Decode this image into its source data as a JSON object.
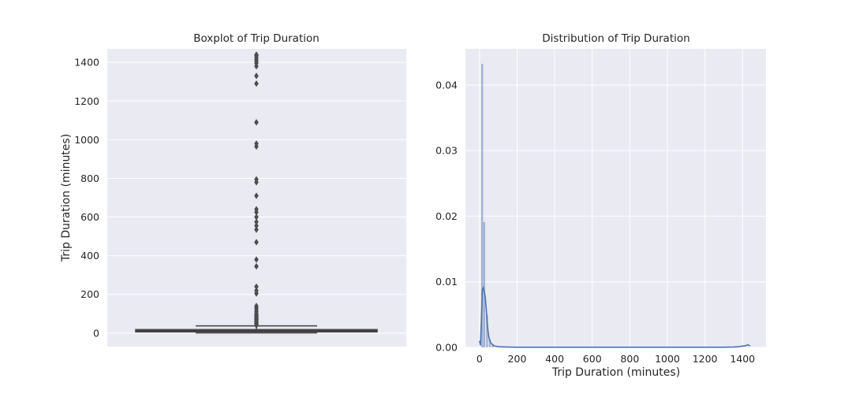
{
  "chart_data": [
    {
      "type": "boxplot",
      "title": "Boxplot of Trip Duration",
      "xlabel": "",
      "ylabel": "Trip Duration (minutes)",
      "ylim": [
        -70,
        1470
      ],
      "yticks": [
        0,
        200,
        400,
        600,
        800,
        1000,
        1200,
        1400
      ],
      "grid": true,
      "box": {
        "q1": 6,
        "median": 11,
        "q3": 18,
        "whisker_low": 1,
        "whisker_high": 37
      },
      "outliers": [
        40,
        45,
        50,
        55,
        60,
        65,
        70,
        75,
        80,
        85,
        90,
        95,
        100,
        110,
        120,
        130,
        140,
        205,
        220,
        240,
        345,
        380,
        470,
        535,
        555,
        575,
        600,
        625,
        640,
        710,
        780,
        795,
        965,
        980,
        1090,
        1290,
        1330,
        1380,
        1395,
        1405,
        1415,
        1425,
        1435,
        1440
      ],
      "colors": {
        "box": "#4c4c4c",
        "background": "#eaeaf2"
      }
    },
    {
      "type": "histogram",
      "title": "Distribution of Trip Duration",
      "xlabel": "Trip Duration (minutes)",
      "ylabel": "",
      "xlim": [
        -75,
        1525
      ],
      "ylim": [
        0,
        0.0455
      ],
      "xticks": [
        0,
        200,
        400,
        600,
        800,
        1000,
        1200,
        1400
      ],
      "yticks": [
        "0.00",
        "0.01",
        "0.02",
        "0.03",
        "0.04"
      ],
      "ytick_values": [
        0,
        0.01,
        0.02,
        0.03,
        0.04
      ],
      "grid": true,
      "bins": [
        {
          "x": 14,
          "height": 0.0432
        },
        {
          "x": 25,
          "height": 0.0191
        },
        {
          "x": 40,
          "height": 0.005
        },
        {
          "x": 55,
          "height": 0.0012
        },
        {
          "x": 70,
          "height": 0.0004
        }
      ],
      "kde": {
        "x": [
          0,
          5,
          10,
          15,
          20,
          25,
          30,
          35,
          40,
          45,
          50,
          55,
          60,
          70,
          80,
          100,
          150,
          200,
          400,
          600,
          800,
          1000,
          1200,
          1300,
          1350,
          1380,
          1400,
          1410,
          1420,
          1430,
          1440
        ],
        "y": [
          0.001,
          0.0003,
          0.004,
          0.0088,
          0.0091,
          0.0085,
          0.0078,
          0.0062,
          0.004,
          0.0025,
          0.0015,
          0.001,
          0.0007,
          0.0004,
          0.0002,
          0.0001,
          5e-05,
          2e-05,
          2e-05,
          2e-05,
          2e-05,
          2e-05,
          2e-05,
          3e-05,
          5e-05,
          0.0001,
          0.0002,
          0.0002,
          0.0003,
          0.0004,
          0.0002
        ]
      },
      "colors": {
        "line": "#4c72b0",
        "bars": "#4c72b0",
        "background": "#eaeaf2"
      }
    }
  ]
}
